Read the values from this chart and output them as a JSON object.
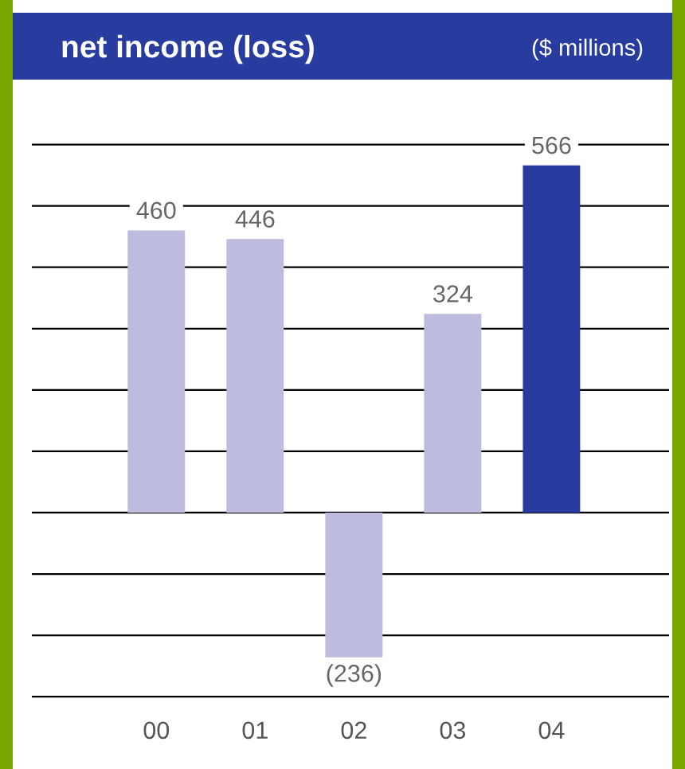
{
  "chart_data": {
    "type": "bar",
    "title": "net income (loss)",
    "subtitle": "($ millions)",
    "categories": [
      "00",
      "01",
      "02",
      "03",
      "04"
    ],
    "values": [
      460,
      446,
      -236,
      324,
      566
    ],
    "value_labels": [
      "460",
      "446",
      "(236)",
      "324",
      "566"
    ],
    "colors": [
      "#bdbcde",
      "#bdbcde",
      "#bdbcde",
      "#bdbcde",
      "#283b9e"
    ],
    "yticks": [
      {
        "value": -300,
        "label": null
      },
      {
        "value": -200,
        "label": null
      },
      {
        "value": -100,
        "label": null
      },
      {
        "value": 0,
        "label": null
      },
      {
        "value": 100,
        "label": null
      },
      {
        "value": 200,
        "label": null
      },
      {
        "value": 300,
        "label": null
      },
      {
        "value": 400,
        "label": null
      },
      {
        "value": 500,
        "label": null
      },
      {
        "value": 600,
        "label": null
      }
    ],
    "grid": "y",
    "tick_labels": "x"
  }
}
